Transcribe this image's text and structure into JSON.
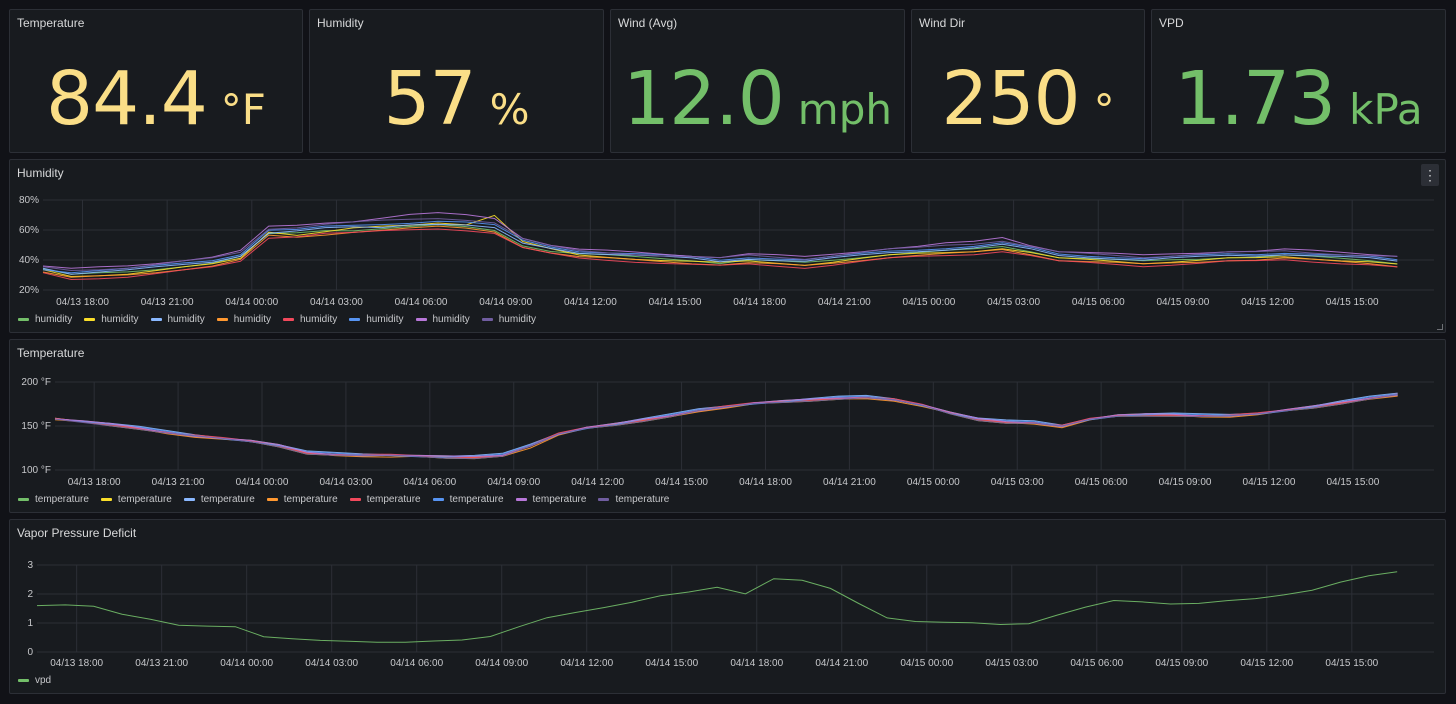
{
  "stats": [
    {
      "title": "Temperature",
      "value": "84.4",
      "unit": "°F",
      "color": "#fade87"
    },
    {
      "title": "Humidity",
      "value": "57",
      "unit": "%",
      "color": "#fade87"
    },
    {
      "title": "Wind (Avg)",
      "value": "12.0",
      "unit": "mph",
      "color": "#73bf69"
    },
    {
      "title": "Wind Dir",
      "value": "250",
      "unit": "°",
      "color": "#fade87"
    },
    {
      "title": "VPD",
      "value": "1.73",
      "unit": "kPa",
      "color": "#73bf69"
    }
  ],
  "x_ticks": [
    "04/13 18:00",
    "04/13 21:00",
    "04/14 00:00",
    "04/14 03:00",
    "04/14 06:00",
    "04/14 09:00",
    "04/14 12:00",
    "04/14 15:00",
    "04/14 18:00",
    "04/14 21:00",
    "04/15 00:00",
    "04/15 03:00",
    "04/15 06:00",
    "04/15 09:00",
    "04/15 12:00",
    "04/15 15:00"
  ],
  "series_colors": [
    "#73bf69",
    "#fade2a",
    "#8ab8ff",
    "#ff9830",
    "#f2495c",
    "#5794f2",
    "#b877d9",
    "#705da0"
  ],
  "humidity_panel": {
    "title": "Humidity",
    "menu_icon": "⋮"
  },
  "temperature_panel": {
    "title": "Temperature"
  },
  "vpd_panel": {
    "title": "Vapor Pressure Deficit"
  },
  "chart_data": [
    {
      "type": "line",
      "title": "Humidity",
      "y_ticks": [
        "20%",
        "40%",
        "60%",
        "80%"
      ],
      "ylim": [
        20,
        80
      ],
      "x_hours": [
        0,
        1,
        2,
        3,
        4,
        5,
        6,
        7,
        8,
        9,
        10,
        11,
        12,
        13,
        14,
        15,
        16,
        17,
        18,
        19,
        20,
        21,
        22,
        23,
        24,
        25,
        26,
        27,
        28,
        29,
        30,
        31,
        32,
        33,
        34,
        35,
        36,
        37,
        38,
        39,
        40,
        41,
        42,
        43,
        44,
        45,
        46,
        47,
        48
      ],
      "series": [
        {
          "name": "humidity",
          "values": [
            34,
            30,
            31,
            32,
            34,
            36,
            38,
            42,
            57,
            58,
            60,
            60,
            61,
            62,
            63,
            62,
            60,
            50,
            46,
            44,
            43,
            42,
            41,
            40,
            38,
            40,
            39,
            38,
            40,
            42,
            44,
            45,
            46,
            47,
            49,
            46,
            42,
            41,
            40,
            39,
            40,
            41,
            42,
            42,
            43,
            42,
            41,
            40,
            38
          ]
        },
        {
          "name": "humidity",
          "values": [
            33,
            29,
            30,
            31,
            33,
            35,
            37,
            41,
            59,
            57,
            59,
            61,
            62,
            63,
            65,
            64,
            70,
            52,
            47,
            43,
            42,
            41,
            40,
            39,
            38,
            39,
            38,
            37,
            39,
            41,
            43,
            44,
            45,
            46,
            48,
            45,
            41,
            40,
            39,
            38,
            39,
            40,
            41,
            41,
            42,
            41,
            40,
            39,
            37
          ]
        },
        {
          "name": "humidity",
          "values": [
            35,
            31,
            32,
            33,
            35,
            37,
            39,
            43,
            58,
            59,
            61,
            62,
            62,
            64,
            64,
            63,
            61,
            51,
            48,
            45,
            44,
            43,
            42,
            41,
            39,
            41,
            40,
            39,
            41,
            43,
            45,
            46,
            47,
            48,
            50,
            47,
            43,
            42,
            41,
            40,
            41,
            42,
            43,
            43,
            44,
            43,
            42,
            41,
            39
          ]
        },
        {
          "name": "humidity",
          "values": [
            32,
            28,
            29,
            30,
            32,
            34,
            36,
            40,
            56,
            55,
            57,
            59,
            60,
            61,
            62,
            61,
            59,
            49,
            45,
            42,
            41,
            40,
            39,
            38,
            37,
            38,
            37,
            36,
            38,
            40,
            42,
            43,
            44,
            45,
            47,
            44,
            40,
            39,
            38,
            37,
            38,
            39,
            40,
            40,
            41,
            40,
            39,
            38,
            36
          ]
        },
        {
          "name": "humidity",
          "values": [
            31,
            27,
            28,
            29,
            31,
            33,
            35,
            39,
            55,
            56,
            58,
            58,
            59,
            60,
            61,
            60,
            58,
            48,
            44,
            41,
            40,
            39,
            38,
            37,
            36,
            37,
            36,
            35,
            37,
            39,
            41,
            42,
            43,
            44,
            46,
            43,
            39,
            38,
            37,
            36,
            37,
            38,
            39,
            39,
            40,
            39,
            38,
            37,
            35
          ]
        },
        {
          "name": "humidity",
          "values": [
            34,
            32,
            33,
            34,
            36,
            38,
            40,
            44,
            60,
            60,
            62,
            63,
            64,
            65,
            66,
            65,
            63,
            53,
            49,
            46,
            45,
            44,
            43,
            42,
            40,
            42,
            41,
            40,
            42,
            44,
            46,
            47,
            48,
            49,
            51,
            48,
            44,
            43,
            42,
            41,
            42,
            43,
            44,
            44,
            45,
            44,
            43,
            42,
            40
          ]
        },
        {
          "name": "humidity",
          "values": [
            36,
            34,
            35,
            36,
            38,
            40,
            42,
            46,
            62,
            63,
            65,
            66,
            68,
            70,
            71,
            70,
            68,
            55,
            50,
            47,
            46,
            45,
            44,
            43,
            42,
            44,
            43,
            42,
            44,
            46,
            48,
            49,
            51,
            52,
            55,
            50,
            46,
            45,
            44,
            43,
            44,
            45,
            46,
            46,
            47,
            46,
            45,
            44,
            43
          ]
        },
        {
          "name": "humidity",
          "values": [
            35,
            33,
            34,
            35,
            37,
            39,
            41,
            45,
            61,
            62,
            64,
            65,
            66,
            67,
            68,
            67,
            65,
            54,
            49,
            46,
            45,
            44,
            43,
            42,
            41,
            43,
            42,
            41,
            43,
            45,
            47,
            48,
            50,
            51,
            53,
            49,
            45,
            44,
            43,
            42,
            43,
            44,
            45,
            45,
            46,
            45,
            44,
            43,
            42
          ]
        }
      ]
    },
    {
      "type": "line",
      "title": "Temperature",
      "y_ticks": [
        "100 °F",
        "150 °F",
        "200 °F"
      ],
      "ylim": [
        100,
        200
      ],
      "x_hours": [
        0,
        1,
        2,
        3,
        4,
        5,
        6,
        7,
        8,
        9,
        10,
        11,
        12,
        13,
        14,
        15,
        16,
        17,
        18,
        19,
        20,
        21,
        22,
        23,
        24,
        25,
        26,
        27,
        28,
        29,
        30,
        31,
        32,
        33,
        34,
        35,
        36,
        37,
        38,
        39,
        40,
        41,
        42,
        43,
        44,
        45,
        46,
        47,
        48
      ],
      "series": [
        {
          "name": "temperature",
          "values": [
            158,
            155,
            152,
            148,
            143,
            139,
            136,
            133,
            128,
            120,
            118,
            117,
            117,
            116,
            115,
            115,
            117,
            128,
            141,
            148,
            152,
            157,
            162,
            168,
            172,
            176,
            178,
            180,
            182,
            183,
            180,
            174,
            165,
            158,
            155,
            154,
            150,
            158,
            162,
            163,
            163,
            162,
            162,
            164,
            168,
            172,
            177,
            182,
            186
          ]
        },
        {
          "name": "temperature",
          "values": [
            158,
            155,
            151,
            147,
            142,
            138,
            135,
            132,
            127,
            119,
            117,
            116,
            116,
            115,
            114,
            114,
            116,
            127,
            140,
            147,
            151,
            156,
            161,
            167,
            171,
            175,
            177,
            179,
            181,
            182,
            179,
            173,
            164,
            157,
            154,
            153,
            149,
            157,
            161,
            162,
            162,
            161,
            161,
            163,
            167,
            171,
            176,
            181,
            185
          ]
        },
        {
          "name": "temperature",
          "values": [
            159,
            156,
            153,
            149,
            144,
            140,
            137,
            134,
            129,
            121,
            119,
            118,
            118,
            117,
            116,
            116,
            118,
            129,
            142,
            149,
            153,
            158,
            163,
            169,
            173,
            177,
            179,
            181,
            183,
            184,
            181,
            175,
            166,
            159,
            156,
            155,
            151,
            159,
            163,
            164,
            164,
            163,
            163,
            165,
            169,
            173,
            178,
            183,
            187
          ]
        },
        {
          "name": "temperature",
          "values": [
            157,
            154,
            151,
            147,
            142,
            138,
            135,
            132,
            127,
            119,
            117,
            116,
            115,
            115,
            114,
            114,
            116,
            126,
            140,
            147,
            151,
            156,
            161,
            167,
            171,
            175,
            177,
            179,
            181,
            182,
            179,
            172,
            164,
            157,
            154,
            153,
            149,
            157,
            161,
            162,
            162,
            161,
            161,
            163,
            167,
            171,
            176,
            181,
            185
          ]
        },
        {
          "name": "temperature",
          "values": [
            158,
            155,
            152,
            148,
            143,
            139,
            136,
            133,
            128,
            120,
            118,
            117,
            117,
            116,
            115,
            115,
            117,
            128,
            141,
            148,
            152,
            157,
            162,
            168,
            172,
            176,
            178,
            180,
            182,
            183,
            180,
            174,
            165,
            158,
            155,
            154,
            150,
            158,
            162,
            163,
            163,
            162,
            162,
            164,
            168,
            172,
            177,
            182,
            186
          ]
        },
        {
          "name": "temperature",
          "values": [
            159,
            156,
            152,
            148,
            143,
            139,
            136,
            133,
            128,
            120,
            118,
            117,
            117,
            116,
            115,
            115,
            117,
            128,
            141,
            148,
            152,
            157,
            162,
            168,
            172,
            176,
            178,
            180,
            182,
            183,
            180,
            174,
            165,
            158,
            155,
            154,
            150,
            158,
            162,
            163,
            163,
            162,
            162,
            164,
            168,
            172,
            177,
            182,
            186
          ]
        },
        {
          "name": "temperature",
          "values": [
            158,
            155,
            152,
            148,
            143,
            139,
            136,
            133,
            128,
            120,
            118,
            117,
            117,
            116,
            115,
            115,
            117,
            128,
            141,
            148,
            152,
            157,
            162,
            168,
            172,
            176,
            178,
            180,
            182,
            183,
            180,
            174,
            165,
            158,
            155,
            154,
            150,
            158,
            162,
            163,
            163,
            162,
            162,
            164,
            168,
            172,
            177,
            182,
            186
          ]
        },
        {
          "name": "temperature",
          "values": [
            157,
            154,
            151,
            147,
            142,
            138,
            135,
            132,
            127,
            119,
            117,
            116,
            116,
            115,
            114,
            114,
            116,
            127,
            140,
            147,
            151,
            156,
            161,
            167,
            171,
            175,
            177,
            179,
            181,
            182,
            179,
            173,
            164,
            157,
            154,
            153,
            149,
            157,
            161,
            162,
            162,
            161,
            161,
            163,
            167,
            171,
            176,
            181,
            185
          ]
        }
      ]
    },
    {
      "type": "line",
      "title": "Vapor Pressure Deficit",
      "y_ticks": [
        "0",
        "1",
        "2",
        "3"
      ],
      "ylim": [
        0,
        3
      ],
      "x_hours": [
        0,
        1,
        2,
        3,
        4,
        5,
        6,
        7,
        8,
        9,
        10,
        11,
        12,
        13,
        14,
        15,
        16,
        17,
        18,
        19,
        20,
        21,
        22,
        23,
        24,
        25,
        26,
        27,
        28,
        29,
        30,
        31,
        32,
        33,
        34,
        35,
        36,
        37,
        38,
        39,
        40,
        41,
        42,
        43,
        44,
        45,
        46,
        47,
        48
      ],
      "series": [
        {
          "name": "vpd",
          "values": [
            1.6,
            1.6,
            1.55,
            1.3,
            1.15,
            0.95,
            0.9,
            0.85,
            0.5,
            0.45,
            0.42,
            0.4,
            0.35,
            0.32,
            0.35,
            0.4,
            0.55,
            0.9,
            1.2,
            1.35,
            1.5,
            1.7,
            1.95,
            2.1,
            2.25,
            2.0,
            2.5,
            2.45,
            2.2,
            1.7,
            1.2,
            1.05,
            1.0,
            0.98,
            0.95,
            1.0,
            1.3,
            1.55,
            1.75,
            1.7,
            1.65,
            1.7,
            1.8,
            1.85,
            1.95,
            2.1,
            2.4,
            2.65,
            2.8
          ]
        }
      ]
    }
  ]
}
